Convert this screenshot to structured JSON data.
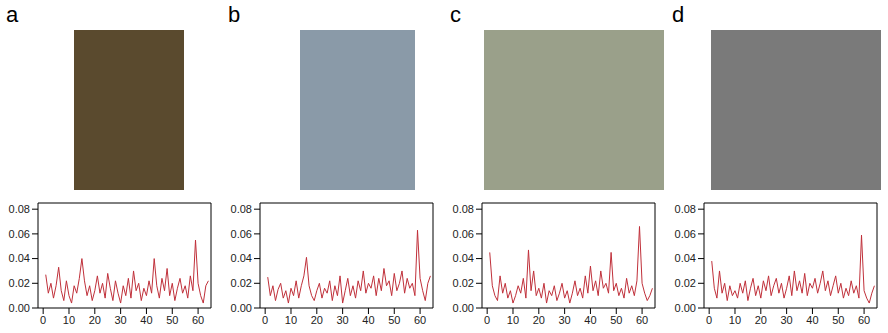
{
  "chart_data": [
    {
      "panel": "a",
      "type": "line",
      "color": "#c0303a",
      "x": [
        1,
        2,
        3,
        4,
        5,
        6,
        7,
        8,
        9,
        10,
        11,
        12,
        13,
        14,
        15,
        16,
        17,
        18,
        19,
        20,
        21,
        22,
        23,
        24,
        25,
        26,
        27,
        28,
        29,
        30,
        31,
        32,
        33,
        34,
        35,
        36,
        37,
        38,
        39,
        40,
        41,
        42,
        43,
        44,
        45,
        46,
        47,
        48,
        49,
        50,
        51,
        52,
        53,
        54,
        55,
        56,
        57,
        58,
        59,
        60,
        61,
        62,
        63,
        64
      ],
      "values": [
        0.027,
        0.012,
        0.02,
        0.008,
        0.018,
        0.033,
        0.014,
        0.006,
        0.022,
        0.01,
        0.004,
        0.018,
        0.012,
        0.024,
        0.04,
        0.022,
        0.01,
        0.018,
        0.006,
        0.014,
        0.026,
        0.012,
        0.02,
        0.008,
        0.028,
        0.016,
        0.006,
        0.022,
        0.012,
        0.004,
        0.018,
        0.01,
        0.024,
        0.008,
        0.03,
        0.014,
        0.02,
        0.006,
        0.016,
        0.01,
        0.022,
        0.012,
        0.04,
        0.018,
        0.008,
        0.024,
        0.014,
        0.032,
        0.01,
        0.02,
        0.006,
        0.016,
        0.024,
        0.012,
        0.018,
        0.008,
        0.026,
        0.014,
        0.055,
        0.02,
        0.01,
        0.004,
        0.018,
        0.022
      ],
      "xlim": [
        -2,
        65
      ],
      "ylim": [
        0,
        0.085
      ],
      "xticks": [
        0,
        10,
        20,
        30,
        40,
        50,
        60
      ],
      "yticks": [
        {
          "value": 0,
          "label": "0.00"
        },
        {
          "value": 0.02,
          "label": "0.02"
        },
        {
          "value": 0.04,
          "label": "0.04"
        },
        {
          "value": 0.06,
          "label": "0.06"
        },
        {
          "value": 0.08,
          "label": "0.08"
        }
      ]
    },
    {
      "panel": "b",
      "type": "line",
      "color": "#c0303a",
      "x": [
        1,
        2,
        3,
        4,
        5,
        6,
        7,
        8,
        9,
        10,
        11,
        12,
        13,
        14,
        15,
        16,
        17,
        18,
        19,
        20,
        21,
        22,
        23,
        24,
        25,
        26,
        27,
        28,
        29,
        30,
        31,
        32,
        33,
        34,
        35,
        36,
        37,
        38,
        39,
        40,
        41,
        42,
        43,
        44,
        45,
        46,
        47,
        48,
        49,
        50,
        51,
        52,
        53,
        54,
        55,
        56,
        57,
        58,
        59,
        60,
        61,
        62,
        63,
        64
      ],
      "values": [
        0.025,
        0.01,
        0.018,
        0.006,
        0.015,
        0.02,
        0.008,
        0.014,
        0.004,
        0.016,
        0.01,
        0.022,
        0.008,
        0.018,
        0.026,
        0.041,
        0.018,
        0.01,
        0.006,
        0.014,
        0.02,
        0.008,
        0.016,
        0.012,
        0.022,
        0.006,
        0.018,
        0.01,
        0.026,
        0.004,
        0.014,
        0.024,
        0.01,
        0.018,
        0.008,
        0.022,
        0.014,
        0.03,
        0.012,
        0.02,
        0.016,
        0.026,
        0.01,
        0.024,
        0.014,
        0.032,
        0.018,
        0.022,
        0.01,
        0.028,
        0.014,
        0.02,
        0.03,
        0.012,
        0.024,
        0.016,
        0.02,
        0.01,
        0.063,
        0.024,
        0.014,
        0.006,
        0.02,
        0.026
      ],
      "xlim": [
        -2,
        65
      ],
      "ylim": [
        0,
        0.085
      ],
      "xticks": [
        0,
        10,
        20,
        30,
        40,
        50,
        60
      ],
      "yticks": [
        {
          "value": 0,
          "label": "0.00"
        },
        {
          "value": 0.02,
          "label": "0.02"
        },
        {
          "value": 0.04,
          "label": "0.04"
        },
        {
          "value": 0.06,
          "label": "0.06"
        },
        {
          "value": 0.08,
          "label": "0.08"
        }
      ]
    },
    {
      "panel": "c",
      "type": "line",
      "color": "#c0303a",
      "x": [
        1,
        2,
        3,
        4,
        5,
        6,
        7,
        8,
        9,
        10,
        11,
        12,
        13,
        14,
        15,
        16,
        17,
        18,
        19,
        20,
        21,
        22,
        23,
        24,
        25,
        26,
        27,
        28,
        29,
        30,
        31,
        32,
        33,
        34,
        35,
        36,
        37,
        38,
        39,
        40,
        41,
        42,
        43,
        44,
        45,
        46,
        47,
        48,
        49,
        50,
        51,
        52,
        53,
        54,
        55,
        56,
        57,
        58,
        59,
        60,
        61,
        62,
        63,
        64
      ],
      "values": [
        0.045,
        0.018,
        0.01,
        0.006,
        0.026,
        0.012,
        0.02,
        0.008,
        0.014,
        0.004,
        0.01,
        0.018,
        0.012,
        0.024,
        0.008,
        0.047,
        0.014,
        0.03,
        0.01,
        0.016,
        0.008,
        0.02,
        0.004,
        0.014,
        0.01,
        0.018,
        0.006,
        0.012,
        0.02,
        0.008,
        0.014,
        0.004,
        0.012,
        0.022,
        0.01,
        0.016,
        0.008,
        0.026,
        0.012,
        0.034,
        0.014,
        0.022,
        0.01,
        0.03,
        0.016,
        0.02,
        0.012,
        0.045,
        0.014,
        0.02,
        0.01,
        0.016,
        0.008,
        0.024,
        0.012,
        0.018,
        0.01,
        0.022,
        0.066,
        0.02,
        0.012,
        0.006,
        0.01,
        0.016
      ],
      "xlim": [
        -2,
        65
      ],
      "ylim": [
        0,
        0.085
      ],
      "xticks": [
        0,
        10,
        20,
        30,
        40,
        50,
        60
      ],
      "yticks": [
        {
          "value": 0,
          "label": "0.00"
        },
        {
          "value": 0.02,
          "label": "0.02"
        },
        {
          "value": 0.04,
          "label": "0.04"
        },
        {
          "value": 0.06,
          "label": "0.06"
        },
        {
          "value": 0.08,
          "label": "0.08"
        }
      ]
    },
    {
      "panel": "d",
      "type": "line",
      "color": "#c0303a",
      "x": [
        1,
        2,
        3,
        4,
        5,
        6,
        7,
        8,
        9,
        10,
        11,
        12,
        13,
        14,
        15,
        16,
        17,
        18,
        19,
        20,
        21,
        22,
        23,
        24,
        25,
        26,
        27,
        28,
        29,
        30,
        31,
        32,
        33,
        34,
        35,
        36,
        37,
        38,
        39,
        40,
        41,
        42,
        43,
        44,
        45,
        46,
        47,
        48,
        49,
        50,
        51,
        52,
        53,
        54,
        55,
        56,
        57,
        58,
        59,
        60,
        61,
        62,
        63,
        64
      ],
      "values": [
        0.038,
        0.016,
        0.008,
        0.03,
        0.012,
        0.02,
        0.006,
        0.018,
        0.01,
        0.014,
        0.008,
        0.02,
        0.012,
        0.022,
        0.006,
        0.016,
        0.024,
        0.01,
        0.018,
        0.008,
        0.022,
        0.014,
        0.026,
        0.01,
        0.018,
        0.024,
        0.012,
        0.02,
        0.008,
        0.016,
        0.026,
        0.01,
        0.03,
        0.014,
        0.022,
        0.012,
        0.028,
        0.01,
        0.02,
        0.016,
        0.024,
        0.012,
        0.02,
        0.03,
        0.014,
        0.022,
        0.01,
        0.018,
        0.026,
        0.012,
        0.02,
        0.008,
        0.016,
        0.01,
        0.022,
        0.012,
        0.018,
        0.008,
        0.059,
        0.014,
        0.008,
        0.004,
        0.012,
        0.018
      ],
      "xlim": [
        -2,
        65
      ],
      "ylim": [
        0,
        0.085
      ],
      "xticks": [
        0,
        10,
        20,
        30,
        40,
        50,
        60
      ],
      "yticks": [
        {
          "value": 0,
          "label": "0.00"
        },
        {
          "value": 0.02,
          "label": "0.02"
        },
        {
          "value": 0.04,
          "label": "0.04"
        },
        {
          "value": 0.06,
          "label": "0.06"
        },
        {
          "value": 0.08,
          "label": "0.08"
        }
      ]
    }
  ]
}
